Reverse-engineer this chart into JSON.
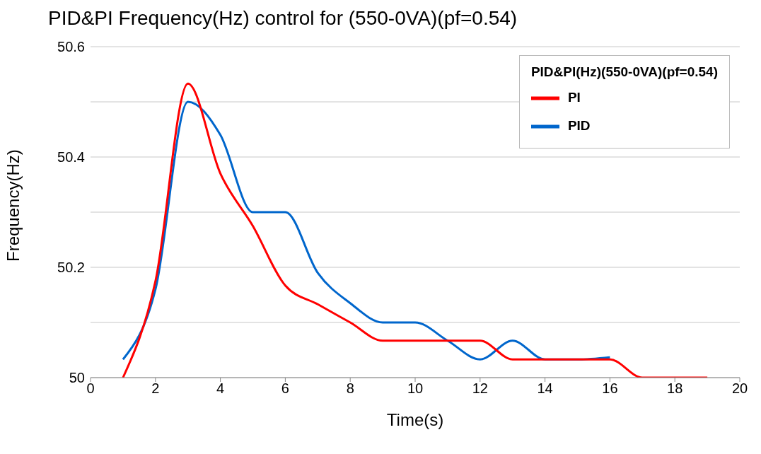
{
  "chart_data": {
    "type": "line",
    "title": "PID&PI Frequency(Hz) control for (550-0VA)(pf=0.54)",
    "xlabel": "Time(s)",
    "ylabel": "Frequency(Hz)",
    "legend_title": "PID&PI(Hz)(550-0VA)(pf=0.54)",
    "x": [
      1,
      2,
      3,
      4,
      5,
      6,
      7,
      8,
      9,
      10,
      11,
      12,
      13,
      14,
      15,
      16,
      17,
      18,
      19
    ],
    "series": [
      {
        "name": "PID",
        "color": "#0066cc",
        "values": [
          50.033,
          50.16,
          50.5,
          50.44,
          50.3,
          50.3,
          50.19,
          50.135,
          50.1,
          50.1,
          50.067,
          50.033,
          50.067,
          50.033,
          50.033,
          50.037,
          null,
          null,
          null
        ]
      },
      {
        "name": "PI",
        "color": "#ff0000",
        "values": [
          50.0,
          50.175,
          50.533,
          50.37,
          50.275,
          50.167,
          50.133,
          50.1,
          50.067,
          50.067,
          50.067,
          50.067,
          50.033,
          50.033,
          50.033,
          50.033,
          50.0,
          50.0,
          50.0
        ]
      }
    ],
    "xlim": [
      0,
      20
    ],
    "xticks": [
      0,
      2,
      4,
      6,
      8,
      10,
      12,
      14,
      16,
      18,
      20
    ],
    "ylim": [
      50,
      50.6
    ],
    "yticks": [
      50,
      {
        "value": 50.1,
        "label": null
      },
      50.2,
      {
        "value": 50.3,
        "label": null
      },
      50.4,
      {
        "value": 50.5,
        "label": null
      },
      50.6
    ],
    "grid": "y",
    "legend": "top right",
    "marker": "none",
    "line_style": "solid"
  }
}
